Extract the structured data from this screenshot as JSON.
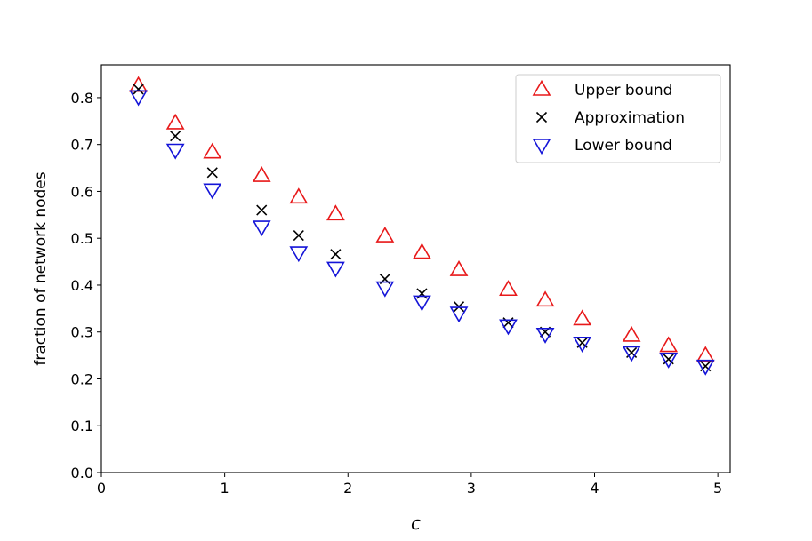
{
  "chart_data": {
    "type": "scatter",
    "xlabel": "c",
    "ylabel": "fraction of network nodes",
    "xlim": [
      0,
      5.1
    ],
    "ylim": [
      0,
      0.87
    ],
    "xticks": [
      0,
      1,
      2,
      3,
      4,
      5
    ],
    "xtick_labels": [
      "0",
      "1",
      "2",
      "3",
      "4",
      "5"
    ],
    "yticks": [
      0.0,
      0.1,
      0.2,
      0.3,
      0.4,
      0.5,
      0.6,
      0.7,
      0.8
    ],
    "ytick_labels": [
      "0.0",
      "0.1",
      "0.2",
      "0.3",
      "0.4",
      "0.5",
      "0.6",
      "0.7",
      "0.8"
    ],
    "grid": false,
    "legend_position": "top-right",
    "series": [
      {
        "name": "Upper bound",
        "marker": "triangle-up",
        "color": "#e8191a",
        "x": [
          0.3,
          0.6,
          0.9,
          1.3,
          1.6,
          1.9,
          2.3,
          2.6,
          2.9,
          3.3,
          3.6,
          3.9,
          4.3,
          4.6,
          4.9
        ],
        "y": [
          0.825,
          0.745,
          0.683,
          0.633,
          0.587,
          0.551,
          0.504,
          0.469,
          0.432,
          0.39,
          0.367,
          0.327,
          0.292,
          0.27,
          0.249
        ]
      },
      {
        "name": "Approximation",
        "marker": "x",
        "color": "#000000",
        "x": [
          0.3,
          0.6,
          0.9,
          1.3,
          1.6,
          1.9,
          2.3,
          2.6,
          2.9,
          3.3,
          3.6,
          3.9,
          4.3,
          4.6,
          4.9
        ],
        "y": [
          0.818,
          0.718,
          0.64,
          0.56,
          0.506,
          0.466,
          0.413,
          0.382,
          0.354,
          0.32,
          0.3,
          0.277,
          0.256,
          0.242,
          0.227
        ]
      },
      {
        "name": "Lower bound",
        "marker": "triangle-down",
        "color": "#1414d8",
        "x": [
          0.3,
          0.6,
          0.9,
          1.3,
          1.6,
          1.9,
          2.3,
          2.6,
          2.9,
          3.3,
          3.6,
          3.9,
          4.3,
          4.6,
          4.9
        ],
        "y": [
          0.803,
          0.689,
          0.604,
          0.525,
          0.47,
          0.437,
          0.395,
          0.365,
          0.341,
          0.314,
          0.296,
          0.277,
          0.257,
          0.243,
          0.228
        ]
      }
    ]
  }
}
